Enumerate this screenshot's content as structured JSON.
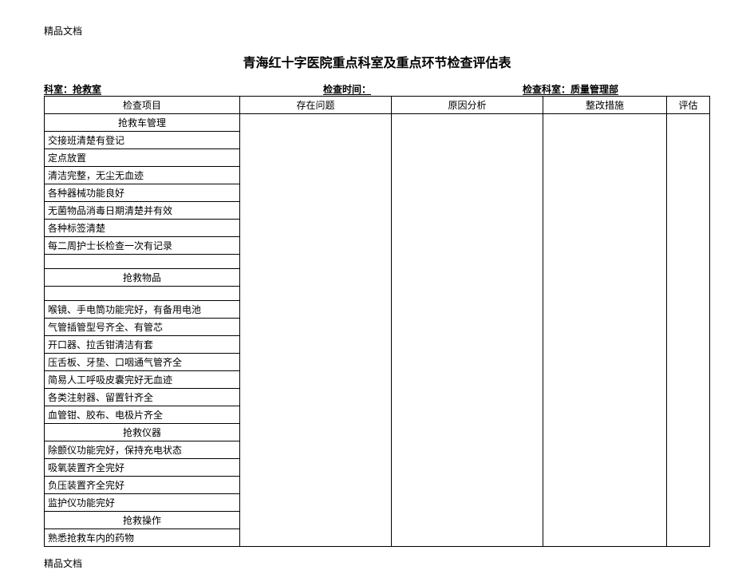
{
  "doc_tag": "精品文档",
  "title": "青海红十字医院重点科室及重点环节检查评估表",
  "meta": {
    "dept_label": "科室：",
    "dept_value": "抢救室",
    "time_label": "检查时间：",
    "time_value": "",
    "inspect_dept_label": "检查科室：",
    "inspect_dept_value": "质量管理部"
  },
  "columns": {
    "item": "检查项目",
    "issue": "存在问题",
    "cause": "原因分析",
    "action": "整改措施",
    "eval": "评估"
  },
  "sections": [
    {
      "header": "抢救车管理",
      "rows": [
        "交接班清楚有登记",
        "定点放置",
        "清洁完整，无尘无血迹",
        "各种器械功能良好",
        "无菌物品消毒日期清楚并有效",
        "各种标签清楚",
        "每二周护士长检查一次有记录"
      ],
      "trailing_blank": true
    },
    {
      "header": "抢救物品",
      "leading_blank": true,
      "rows": [
        "喉镜、手电筒功能完好，有备用电池",
        "气管插管型号齐全、有管芯",
        "开口器、拉舌钳清洁有套",
        "压舌板、牙垫、口咽通气管齐全",
        "简易人工呼吸皮囊完好无血迹",
        "各类注射器、留置针齐全",
        "血管钳、胶布、电极片齐全"
      ]
    },
    {
      "header": "抢救仪器",
      "rows": [
        "除颤仪功能完好，保持充电状态",
        "吸氧装置齐全完好",
        "负压装置齐全完好",
        "监护仪功能完好"
      ]
    },
    {
      "header": "抢救操作",
      "rows": [
        "熟悉抢救车内的药物"
      ]
    }
  ]
}
